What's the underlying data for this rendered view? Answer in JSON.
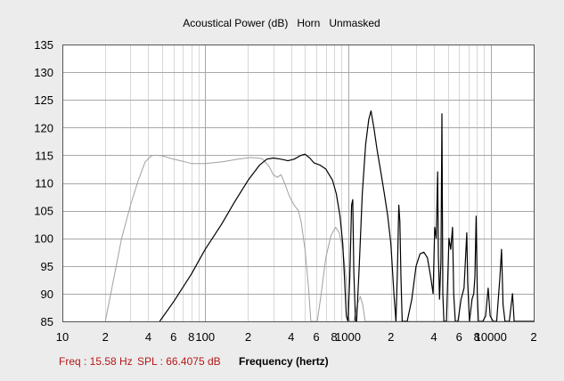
{
  "window": {
    "title": "Acoustical Power (dB)   Horn   Unmasked"
  },
  "readout": {
    "freq": "Freq : 15.58 Hz",
    "spl": "SPL : 66.4075 dB"
  },
  "colors": {
    "background": "#ececec",
    "plot_bg": "#ffffff",
    "grid_minor": "#d8d8d8",
    "grid_major": "#a8a8a8",
    "primary_series": "#000000",
    "secondary_series": "#a0a0a0",
    "readout_text": "#b41818"
  },
  "chart_data": {
    "type": "line",
    "title": "Acoustical Power (dB)   Horn   Unmasked",
    "xlabel": "Frequency (hertz)",
    "ylabel": "",
    "x_scale": "log",
    "xlim": [
      10,
      20000
    ],
    "ylim": [
      85,
      135
    ],
    "grid": true,
    "y_ticks": [
      85,
      90,
      95,
      100,
      105,
      110,
      115,
      120,
      125,
      130,
      135
    ],
    "x_ticks": [
      {
        "value": 10,
        "label": "10"
      },
      {
        "value": 20,
        "label": "2"
      },
      {
        "value": 40,
        "label": "4"
      },
      {
        "value": 60,
        "label": "6"
      },
      {
        "value": 80,
        "label": "8"
      },
      {
        "value": 100,
        "label": "100"
      },
      {
        "value": 200,
        "label": "2"
      },
      {
        "value": 400,
        "label": "4"
      },
      {
        "value": 600,
        "label": "6"
      },
      {
        "value": 800,
        "label": "8"
      },
      {
        "value": 1000,
        "label": "1000"
      },
      {
        "value": 2000,
        "label": "2"
      },
      {
        "value": 4000,
        "label": "4"
      },
      {
        "value": 6000,
        "label": "6"
      },
      {
        "value": 8000,
        "label": "8"
      },
      {
        "value": 10000,
        "label": "10000"
      },
      {
        "value": 20000,
        "label": "2"
      }
    ],
    "series": [
      {
        "color": "#000000",
        "points": [
          [
            48,
            85
          ],
          [
            60,
            88.5
          ],
          [
            80,
            93.5
          ],
          [
            100,
            98
          ],
          [
            130,
            102.5
          ],
          [
            160,
            106.5
          ],
          [
            200,
            110.5
          ],
          [
            240,
            113.2
          ],
          [
            270,
            114.3
          ],
          [
            300,
            114.5
          ],
          [
            340,
            114.3
          ],
          [
            380,
            114
          ],
          [
            420,
            114.3
          ],
          [
            470,
            115
          ],
          [
            500,
            115.2
          ],
          [
            540,
            114.5
          ],
          [
            580,
            113.6
          ],
          [
            640,
            113.2
          ],
          [
            700,
            112.5
          ],
          [
            780,
            110.5
          ],
          [
            830,
            108
          ],
          [
            880,
            104
          ],
          [
            920,
            99
          ],
          [
            950,
            92
          ],
          [
            975,
            86
          ],
          [
            1000,
            85
          ],
          [
            1030,
            93
          ],
          [
            1060,
            106
          ],
          [
            1080,
            107
          ],
          [
            1100,
            94
          ],
          [
            1130,
            85
          ],
          [
            1150,
            85
          ],
          [
            1200,
            95
          ],
          [
            1260,
            108
          ],
          [
            1330,
            117
          ],
          [
            1400,
            121.5
          ],
          [
            1450,
            123
          ],
          [
            1520,
            120
          ],
          [
            1600,
            116
          ],
          [
            1700,
            112
          ],
          [
            1800,
            108
          ],
          [
            1900,
            104
          ],
          [
            2000,
            99
          ],
          [
            2100,
            90
          ],
          [
            2170,
            85
          ],
          [
            2220,
            94
          ],
          [
            2270,
            106
          ],
          [
            2310,
            103
          ],
          [
            2350,
            93
          ],
          [
            2400,
            85
          ],
          [
            2600,
            85
          ],
          [
            2800,
            89
          ],
          [
            3000,
            95
          ],
          [
            3200,
            97.2
          ],
          [
            3400,
            97.5
          ],
          [
            3600,
            96.5
          ],
          [
            3800,
            93
          ],
          [
            3950,
            90
          ],
          [
            4050,
            102
          ],
          [
            4150,
            100
          ],
          [
            4250,
            112
          ],
          [
            4300,
            97
          ],
          [
            4380,
            89
          ],
          [
            4480,
            96
          ],
          [
            4550,
            122.5
          ],
          [
            4620,
            90
          ],
          [
            4700,
            85
          ],
          [
            4900,
            85
          ],
          [
            5100,
            100
          ],
          [
            5250,
            98
          ],
          [
            5400,
            102
          ],
          [
            5500,
            90
          ],
          [
            5650,
            85
          ],
          [
            5900,
            85
          ],
          [
            6200,
            89
          ],
          [
            6500,
            91
          ],
          [
            6800,
            101
          ],
          [
            6900,
            92
          ],
          [
            7100,
            85
          ],
          [
            7400,
            89
          ],
          [
            7600,
            90
          ],
          [
            7750,
            93
          ],
          [
            7900,
            104
          ],
          [
            8050,
            90
          ],
          [
            8200,
            85
          ],
          [
            8800,
            85
          ],
          [
            9200,
            86
          ],
          [
            9600,
            91
          ],
          [
            9900,
            86
          ],
          [
            10400,
            85
          ],
          [
            11000,
            85
          ],
          [
            11600,
            93
          ],
          [
            11900,
            98
          ],
          [
            12200,
            88
          ],
          [
            12600,
            85
          ],
          [
            13500,
            85
          ],
          [
            14200,
            90
          ],
          [
            14600,
            85
          ],
          [
            20000,
            85
          ]
        ]
      },
      {
        "color": "#a0a0a0",
        "points": [
          [
            20,
            85
          ],
          [
            23,
            93
          ],
          [
            26,
            100
          ],
          [
            30,
            106
          ],
          [
            34,
            110.5
          ],
          [
            38,
            113.8
          ],
          [
            42,
            114.9
          ],
          [
            45,
            115
          ],
          [
            50,
            114.9
          ],
          [
            60,
            114.3
          ],
          [
            70,
            113.9
          ],
          [
            80,
            113.5
          ],
          [
            100,
            113.5
          ],
          [
            130,
            113.8
          ],
          [
            170,
            114.3
          ],
          [
            210,
            114.6
          ],
          [
            250,
            114.4
          ],
          [
            280,
            113
          ],
          [
            300,
            111.5
          ],
          [
            320,
            111
          ],
          [
            340,
            111.5
          ],
          [
            360,
            110
          ],
          [
            390,
            107.5
          ],
          [
            420,
            106
          ],
          [
            450,
            105
          ],
          [
            470,
            103
          ],
          [
            500,
            98
          ],
          [
            530,
            91
          ],
          [
            550,
            85
          ],
          [
            610,
            85
          ],
          [
            650,
            90
          ],
          [
            700,
            96.5
          ],
          [
            760,
            100.5
          ],
          [
            820,
            102
          ],
          [
            870,
            101
          ],
          [
            920,
            98
          ],
          [
            970,
            93
          ],
          [
            1010,
            86
          ],
          [
            1030,
            85
          ],
          [
            1100,
            85
          ],
          [
            1160,
            88
          ],
          [
            1220,
            89.5
          ],
          [
            1270,
            88
          ],
          [
            1320,
            85
          ],
          [
            20000,
            85
          ]
        ]
      }
    ]
  }
}
